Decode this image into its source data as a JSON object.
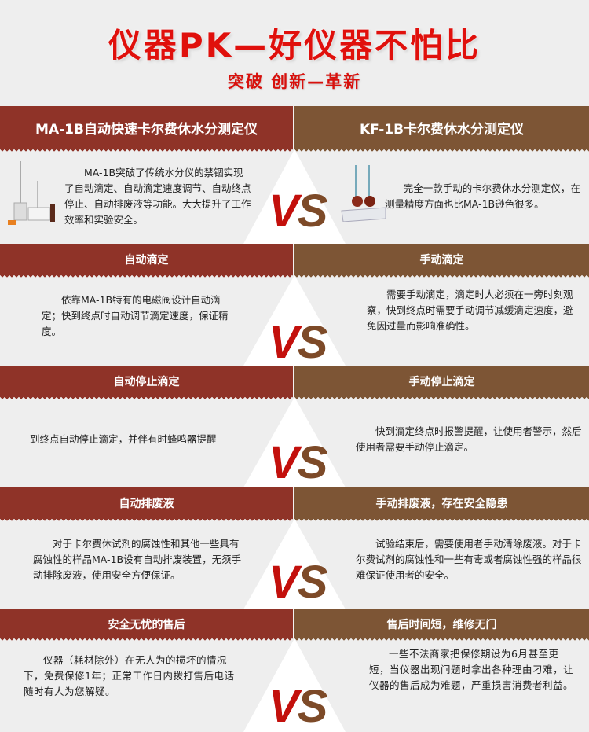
{
  "header": {
    "title": "仪器PK—好仪器不怕比",
    "subtitle": "突破  创新—革新"
  },
  "vs": {
    "v": "V",
    "s": "S"
  },
  "colors": {
    "left_bar": "#8f3328",
    "right_bar": "#7d5535",
    "title": "#e0100c"
  },
  "sections": [
    {
      "left_title": "MA-1B自动快速卡尔费休水分测定仪",
      "right_title": "KF-1B卡尔费休水分测定仪",
      "left_text": "MA-1B突破了传统水分仪的禁锢实现了自动滴定、自动滴定速度调节、自动终点停止、自动排废液等功能。大大提升了工作效率和实验安全。",
      "right_text": "完全一款手动的卡尔费休水分测定仪，在测量精度方面也比MA-1B逊色很多。"
    },
    {
      "left_title": "自动滴定",
      "right_title": "手动滴定",
      "left_text": "依靠MA-1B特有的电磁阀设计自动滴定；快到终点时自动调节滴定速度，保证精度。",
      "right_text": "需要手动滴定，滴定时人必须在一旁时刻观察，快到终点时需要手动调节减缓滴定速度，避免因过量而影响准确性。"
    },
    {
      "left_title": "自动停止滴定",
      "right_title": "手动停止滴定",
      "left_text": "到终点自动停止滴定，并伴有时蜂鸣器提醒",
      "right_text": "快到滴定终点时报警提醒，让使用者警示，然后使用者需要手动停止滴定。"
    },
    {
      "left_title": "自动排废液",
      "right_title": "手动排废液，存在安全隐患",
      "left_text": "对于卡尔费休试剂的腐蚀性和其他一些具有腐蚀性的样品MA-1B设有自动排废装置，无须手动排除废液，使用安全方便保证。",
      "right_text": "试验结束后，需要使用者手动清除废液。对于卡尔费试剂的腐蚀性和一些有毒或者腐蚀性强的样品很难保证使用者的安全。"
    },
    {
      "left_title": "安全无忧的售后",
      "right_title": "售后时间短，维修无门",
      "left_text": "仪器（耗材除外）在无人为的损坏的情况下，免费保修1年；正常工作日内拨打售后电话随时有人为您解疑。",
      "right_text": "一些不法商家把保修期设为6月甚至更短，当仪器出现问题时拿出各种理由刁难，让仪器的售后成为难题，严重损害消费者利益。"
    }
  ]
}
